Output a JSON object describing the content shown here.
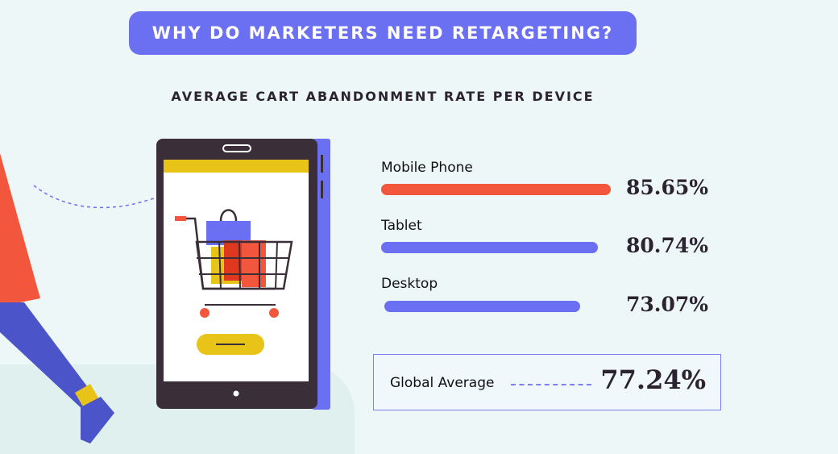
{
  "header": {
    "title": "WHY DO MARKETERS NEED RETARGETING?",
    "subtitle": "AVERAGE CART ABANDONMENT RATE PER DEVICE"
  },
  "colors": {
    "accent_blue": "#6b70f2",
    "mobile_bar": "#f2573d",
    "other_bar": "#6b70f2",
    "yellow": "#e8c318"
  },
  "chart_data": {
    "type": "bar",
    "title": "AVERAGE CART ABANDONMENT RATE PER DEVICE",
    "categories": [
      "Mobile Phone",
      "Tablet",
      "Desktop"
    ],
    "values": [
      85.65,
      80.74,
      73.07
    ],
    "value_labels": [
      "85.65%",
      "80.74%",
      "73.07%"
    ],
    "unit": "%",
    "xlabel": "",
    "ylabel": "",
    "xlim": [
      0,
      100
    ],
    "orientation": "horizontal",
    "annotation": {
      "label": "Global Average",
      "value": 77.24,
      "value_label": "77.24%"
    }
  }
}
